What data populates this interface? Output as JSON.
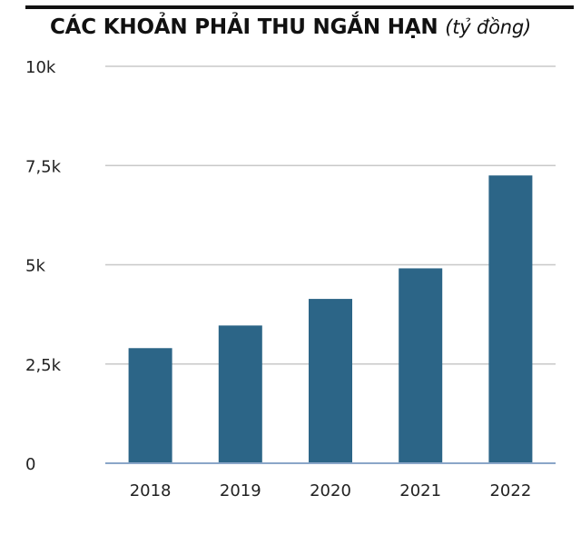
{
  "chart_data": {
    "type": "bar",
    "title": "CÁC KHOẢN PHẢI THU NGẮN HẠN",
    "title_unit": "(tỷ đồng)",
    "categories": [
      "2018",
      "2019",
      "2020",
      "2021",
      "2022"
    ],
    "values": [
      2900,
      3470,
      4140,
      4910,
      7250
    ],
    "ylim": [
      0,
      10000
    ],
    "yticks": [
      0,
      2500,
      5000,
      7500,
      10000
    ],
    "ytick_labels": [
      "0",
      "2,5k",
      "5k",
      "7,5k",
      "10k"
    ],
    "xlabel": "",
    "ylabel": "",
    "grid": true,
    "colors": {
      "bar": "#2c6587",
      "grid": "#c8c8c8",
      "baseline": "#8aa6c8",
      "rule": "#111111"
    }
  }
}
